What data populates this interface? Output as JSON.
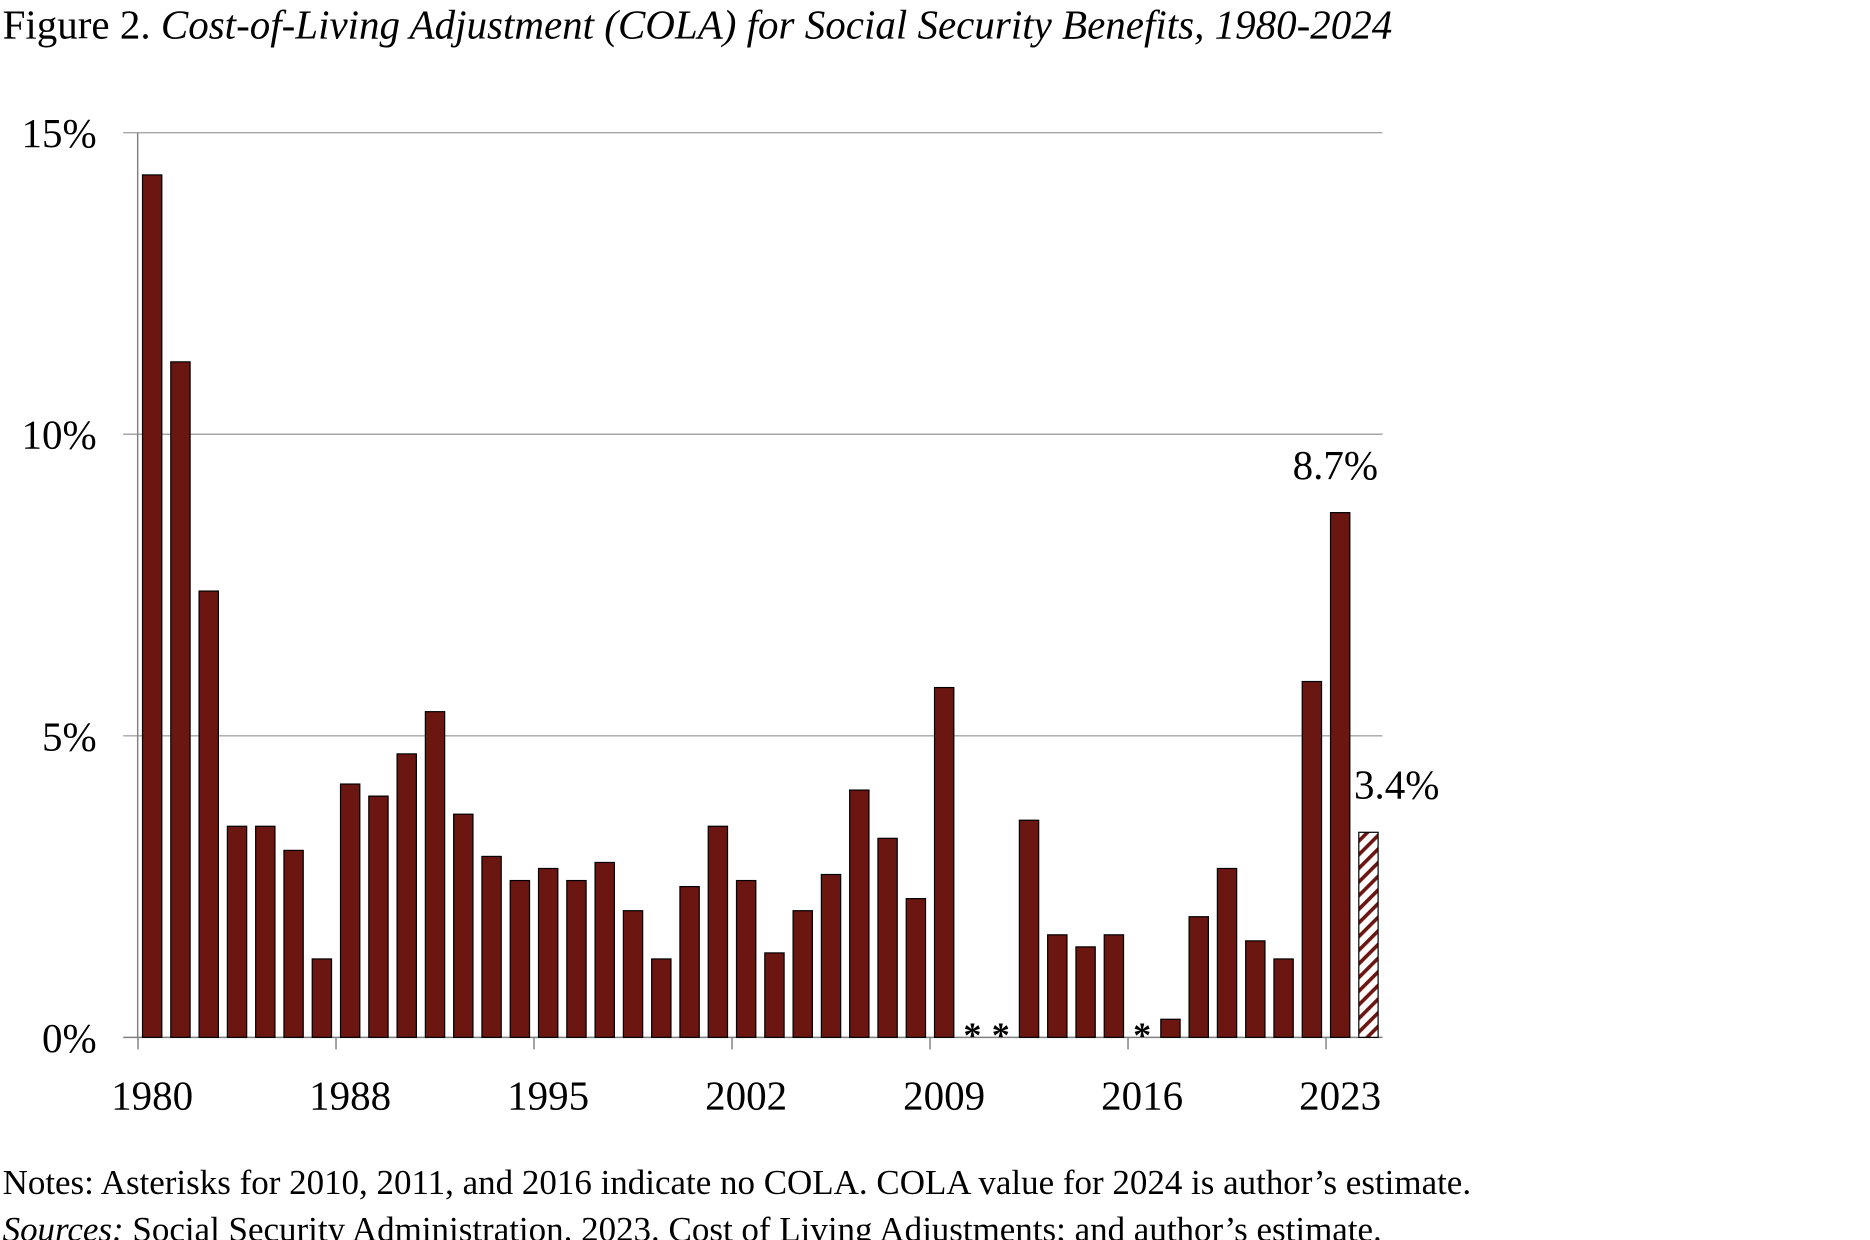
{
  "chart_data": {
    "type": "bar",
    "title_prefix": "Figure 2.",
    "title": "Cost-of-Living Adjustment (COLA) for Social Security Benefits, 1980-2024",
    "categories": [
      1981,
      1982,
      1983,
      1984,
      1985,
      1986,
      1987,
      1988,
      1989,
      1990,
      1991,
      1992,
      1993,
      1994,
      1995,
      1996,
      1997,
      1998,
      1999,
      2000,
      2001,
      2002,
      2003,
      2004,
      2005,
      2006,
      2007,
      2008,
      2009,
      2010,
      2011,
      2012,
      2013,
      2014,
      2015,
      2016,
      2017,
      2018,
      2019,
      2020,
      2021,
      2022,
      2023,
      2024
    ],
    "values": [
      14.3,
      11.2,
      7.4,
      3.5,
      3.5,
      3.1,
      1.3,
      4.2,
      4.0,
      4.7,
      5.4,
      3.7,
      3.0,
      2.6,
      2.8,
      2.6,
      2.9,
      2.1,
      1.3,
      2.5,
      3.5,
      2.6,
      1.4,
      2.1,
      2.7,
      4.1,
      3.3,
      2.3,
      5.8,
      0,
      0,
      3.6,
      1.7,
      1.5,
      1.7,
      0,
      0.3,
      2.0,
      2.8,
      1.6,
      1.3,
      5.9,
      8.7,
      3.4
    ],
    "estimated_category": 2024,
    "no_cola_marker": "*",
    "no_cola_years": [
      2010,
      2011,
      2016
    ],
    "x_tick_labels": [
      "1980",
      "1988",
      "1995",
      "2002",
      "2009",
      "2016",
      "2023"
    ],
    "y_ticks": [
      0,
      5,
      10,
      15
    ],
    "y_tick_labels": [
      "0%",
      "5%",
      "10%",
      "15%"
    ],
    "ylim": [
      0,
      15
    ],
    "grid": true,
    "data_labels": [
      {
        "category": 2023,
        "text": "8.7%"
      },
      {
        "category": 2024,
        "text": "3.4%"
      }
    ],
    "xlabel": "",
    "ylabel": "",
    "colors": {
      "bar": "#6b1610",
      "outline": "#000000",
      "grid": "#a6a6a6"
    }
  },
  "notes": {
    "notes_text": "Notes: Asterisks for 2010, 2011, and 2016 indicate no COLA.  COLA value for 2024 is author’s estimate.",
    "sources_label": "Sources:",
    "sources_text": " Social Security Administration. 2023. Cost of Living Adjustments; and author’s estimate."
  }
}
